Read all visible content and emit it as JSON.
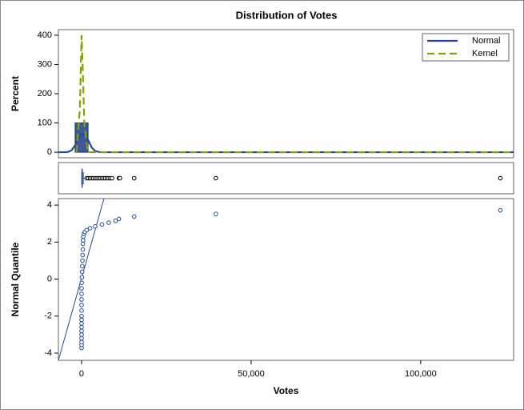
{
  "chart_data": [
    {
      "type": "histogram",
      "title": "Distribution of Votes",
      "ylabel": "Percent",
      "bins": [
        -1900,
        1900
      ],
      "values": [
        100
      ],
      "color": "#3a5a9c",
      "xlim": [
        -6840,
        127400
      ],
      "ylim": [
        -19,
        419
      ],
      "yticks": [
        0,
        100,
        200,
        300,
        400
      ],
      "legend": "top-right",
      "series": [
        {
          "name": "Normal",
          "color": "#26479a",
          "dash": false,
          "x": [
            -6840,
            -5000,
            -4000,
            -3000,
            -2000,
            -1000,
            0,
            500,
            1000,
            2000,
            3000,
            4000,
            5000,
            6000,
            127400
          ],
          "values": [
            0,
            0,
            1,
            6,
            22,
            48,
            62,
            63,
            60,
            40,
            16,
            4,
            1,
            0,
            0
          ]
        },
        {
          "name": "Kernel",
          "color": "#8aa000",
          "dash": true,
          "x": [
            -1500,
            -500,
            0,
            300,
            800,
            1800,
            127400
          ],
          "values": [
            0,
            150,
            400,
            300,
            100,
            0,
            0
          ]
        }
      ]
    },
    {
      "type": "box",
      "xlim": [
        -6840,
        127400
      ],
      "whisker_low": 0,
      "q1": 50,
      "median": 150,
      "q3": 500,
      "whisker_high": 1200,
      "outliers": [
        1500,
        2000,
        2500,
        3000,
        3500,
        4000,
        4500,
        5000,
        5500,
        6000,
        6500,
        7000,
        7500,
        8000,
        8500,
        9000,
        11000,
        11300,
        15500,
        39600,
        123500
      ]
    },
    {
      "type": "qq",
      "ylabel": "Normal Quantile",
      "xlabel": "Votes",
      "xlim": [
        -6840,
        127400
      ],
      "ylim": [
        -4.39,
        4.35
      ],
      "xticks": [
        0,
        {
          "value": 50000,
          "label": "50,000"
        },
        {
          "value": 100000,
          "label": "100,000"
        }
      ],
      "yticks": [
        -4,
        -2,
        0,
        2,
        4
      ],
      "x": [
        0,
        0,
        0,
        0,
        0,
        0,
        0,
        0,
        0,
        0,
        0,
        0,
        0,
        0,
        0,
        50,
        100,
        150,
        200,
        250,
        300,
        350,
        400,
        450,
        500,
        700,
        1000,
        1500,
        2500,
        4000,
        6000,
        8000,
        10000,
        11000,
        15500,
        39600,
        123500
      ],
      "values": [
        -3.72,
        -3.55,
        -3.4,
        -3.2,
        -3.0,
        -2.8,
        -2.6,
        -2.4,
        -2.2,
        -2.0,
        -1.7,
        -1.4,
        -1.1,
        -0.8,
        -0.5,
        -0.2,
        0.1,
        0.4,
        0.7,
        1.0,
        1.3,
        1.6,
        1.9,
        2.1,
        2.3,
        2.45,
        2.55,
        2.65,
        2.75,
        2.85,
        2.95,
        3.05,
        3.15,
        3.25,
        3.38,
        3.52,
        3.72
      ],
      "color": "#1f4e9c",
      "reference_line": {
        "x": [
          -6840,
          6600
        ],
        "values": [
          -4.39,
          4.35
        ]
      }
    }
  ]
}
